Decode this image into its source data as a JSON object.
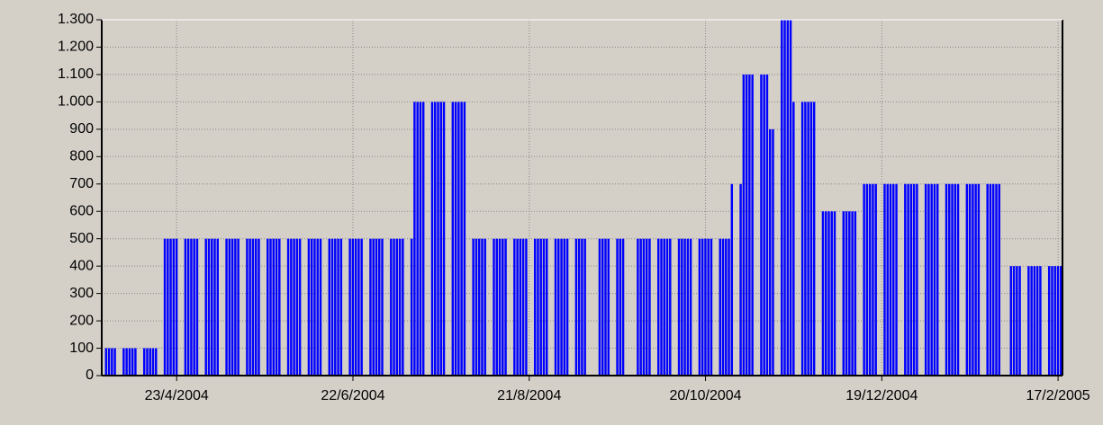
{
  "chart_data": {
    "type": "bar",
    "color": "#0000ff",
    "xlim": [
      "29/3/2004",
      "19/2/2005"
    ],
    "xticks": [
      "23/4/2004",
      "22/6/2004",
      "21/8/2004",
      "20/10/2004",
      "19/12/2004",
      "17/2/2005"
    ],
    "ylim": [
      0,
      1300
    ],
    "yticks": [
      0,
      100,
      200,
      300,
      400,
      500,
      600,
      700,
      800,
      900,
      {
        "value": 1000,
        "label": "1.000"
      },
      {
        "value": 1100,
        "label": "1.100"
      },
      {
        "value": 1200,
        "label": "1.200"
      },
      {
        "value": 1300,
        "label": "1.300"
      }
    ],
    "grid": true,
    "x": [
      "30/3/2004",
      "31/3/2004",
      "1/4/2004",
      "2/4/2004",
      "5/4/2004",
      "6/4/2004",
      "7/4/2004",
      "8/4/2004",
      "9/4/2004",
      "12/4/2004",
      "13/4/2004",
      "14/4/2004",
      "15/4/2004",
      "16/4/2004",
      "19/4/2004",
      "20/4/2004",
      "21/4/2004",
      "22/4/2004",
      "23/4/2004",
      "26/4/2004",
      "27/4/2004",
      "28/4/2004",
      "29/4/2004",
      "30/4/2004",
      "3/5/2004",
      "4/5/2004",
      "5/5/2004",
      "6/5/2004",
      "7/5/2004",
      "10/5/2004",
      "11/5/2004",
      "12/5/2004",
      "13/5/2004",
      "14/5/2004",
      "17/5/2004",
      "18/5/2004",
      "19/5/2004",
      "20/5/2004",
      "21/5/2004",
      "24/5/2004",
      "25/5/2004",
      "26/5/2004",
      "27/5/2004",
      "28/5/2004",
      "31/5/2004",
      "1/6/2004",
      "2/6/2004",
      "3/6/2004",
      "4/6/2004",
      "7/6/2004",
      "8/6/2004",
      "9/6/2004",
      "10/6/2004",
      "11/6/2004",
      "14/6/2004",
      "15/6/2004",
      "16/6/2004",
      "17/6/2004",
      "18/6/2004",
      "21/6/2004",
      "22/6/2004",
      "23/6/2004",
      "24/6/2004",
      "25/6/2004",
      "28/6/2004",
      "29/6/2004",
      "30/6/2004",
      "1/7/2004",
      "2/7/2004",
      "5/7/2004",
      "6/7/2004",
      "7/7/2004",
      "8/7/2004",
      "9/7/2004",
      "12/7/2004",
      "13/7/2004",
      "14/7/2004",
      "15/7/2004",
      "16/7/2004",
      "19/7/2004",
      "20/7/2004",
      "21/7/2004",
      "22/7/2004",
      "23/7/2004",
      "26/7/2004",
      "27/7/2004",
      "28/7/2004",
      "29/7/2004",
      "30/7/2004",
      "2/8/2004",
      "3/8/2004",
      "4/8/2004",
      "5/8/2004",
      "6/8/2004",
      "9/8/2004",
      "10/8/2004",
      "11/8/2004",
      "12/8/2004",
      "13/8/2004",
      "16/8/2004",
      "17/8/2004",
      "18/8/2004",
      "19/8/2004",
      "20/8/2004",
      "23/8/2004",
      "24/8/2004",
      "25/8/2004",
      "26/8/2004",
      "27/8/2004",
      "30/8/2004",
      "31/8/2004",
      "1/9/2004",
      "2/9/2004",
      "3/9/2004",
      "6/9/2004",
      "7/9/2004",
      "8/9/2004",
      "9/9/2004",
      "14/9/2004",
      "15/9/2004",
      "16/9/2004",
      "17/9/2004",
      "20/9/2004",
      "21/9/2004",
      "22/9/2004",
      "27/9/2004",
      "28/9/2004",
      "29/9/2004",
      "30/9/2004",
      "1/10/2004",
      "4/10/2004",
      "5/10/2004",
      "6/10/2004",
      "7/10/2004",
      "8/10/2004",
      "11/10/2004",
      "12/10/2004",
      "13/10/2004",
      "14/10/2004",
      "15/10/2004",
      "18/10/2004",
      "19/10/2004",
      "20/10/2004",
      "21/10/2004",
      "22/10/2004",
      "25/10/2004",
      "26/10/2004",
      "27/10/2004",
      "28/10/2004",
      "29/10/2004",
      "1/11/2004",
      "2/11/2004",
      "3/11/2004",
      "4/11/2004",
      "5/11/2004",
      "8/11/2004",
      "9/11/2004",
      "10/11/2004",
      "11/11/2004",
      "12/11/2004",
      "15/11/2004",
      "16/11/2004",
      "17/11/2004",
      "18/11/2004",
      "19/11/2004",
      "22/11/2004",
      "23/11/2004",
      "24/11/2004",
      "25/11/2004",
      "26/11/2004",
      "29/11/2004",
      "30/11/2004",
      "1/12/2004",
      "2/12/2004",
      "3/12/2004",
      "6/12/2004",
      "7/12/2004",
      "8/12/2004",
      "9/12/2004",
      "10/12/2004",
      "13/12/2004",
      "14/12/2004",
      "15/12/2004",
      "16/12/2004",
      "17/12/2004",
      "20/12/2004",
      "21/12/2004",
      "22/12/2004",
      "23/12/2004",
      "24/12/2004",
      "27/12/2004",
      "28/12/2004",
      "29/12/2004",
      "30/12/2004",
      "31/12/2004",
      "3/1/2005",
      "4/1/2005",
      "5/1/2005",
      "6/1/2005",
      "7/1/2005",
      "10/1/2005",
      "11/1/2005",
      "12/1/2005",
      "13/1/2005",
      "14/1/2005",
      "17/1/2005",
      "18/1/2005",
      "19/1/2005",
      "20/1/2005",
      "21/1/2005",
      "24/1/2005",
      "25/1/2005",
      "26/1/2005",
      "27/1/2005",
      "28/1/2005",
      "1/2/2005",
      "2/2/2005",
      "3/2/2005",
      "4/2/2005",
      "7/2/2005",
      "8/2/2005",
      "9/2/2005",
      "10/2/2005",
      "11/2/2005",
      "14/2/2005",
      "15/2/2005",
      "16/2/2005",
      "17/2/2005",
      "18/2/2005"
    ],
    "values": [
      100,
      100,
      100,
      100,
      100,
      100,
      100,
      100,
      100,
      100,
      100,
      100,
      100,
      100,
      500,
      500,
      500,
      500,
      500,
      500,
      500,
      500,
      500,
      500,
      500,
      500,
      500,
      500,
      500,
      500,
      500,
      500,
      500,
      500,
      500,
      500,
      500,
      500,
      500,
      500,
      500,
      500,
      500,
      500,
      500,
      500,
      500,
      500,
      500,
      500,
      500,
      500,
      500,
      500,
      500,
      500,
      500,
      500,
      500,
      500,
      500,
      500,
      500,
      500,
      500,
      500,
      500,
      500,
      500,
      500,
      500,
      500,
      500,
      500,
      500,
      1000,
      1000,
      1000,
      1000,
      1000,
      1000,
      1000,
      1000,
      1000,
      1000,
      1000,
      1000,
      1000,
      1000,
      500,
      500,
      500,
      500,
      500,
      500,
      500,
      500,
      500,
      500,
      500,
      500,
      500,
      500,
      500,
      500,
      500,
      500,
      500,
      500,
      500,
      500,
      500,
      500,
      500,
      500,
      500,
      500,
      500,
      500,
      500,
      500,
      500,
      500,
      500,
      500,
      500,
      500,
      500,
      500,
      500,
      500,
      500,
      500,
      500,
      500,
      500,
      500,
      500,
      500,
      500,
      500,
      500,
      500,
      500,
      500,
      500,
      500,
      500,
      500,
      700,
      700,
      1100,
      1100,
      1100,
      1100,
      1100,
      1100,
      1100,
      900,
      900,
      1300,
      1300,
      1300,
      1300,
      1000,
      1000,
      1000,
      1000,
      1000,
      1000,
      600,
      600,
      600,
      600,
      600,
      600,
      600,
      600,
      600,
      600,
      700,
      700,
      700,
      700,
      700,
      700,
      700,
      700,
      700,
      700,
      700,
      700,
      700,
      700,
      700,
      700,
      700,
      700,
      700,
      700,
      700,
      700,
      700,
      700,
      700,
      700,
      700,
      700,
      700,
      700,
      700,
      700,
      700,
      700,
      700,
      400,
      400,
      400,
      400,
      400,
      400,
      400,
      400,
      400,
      400,
      400,
      400,
      400,
      400
    ]
  }
}
